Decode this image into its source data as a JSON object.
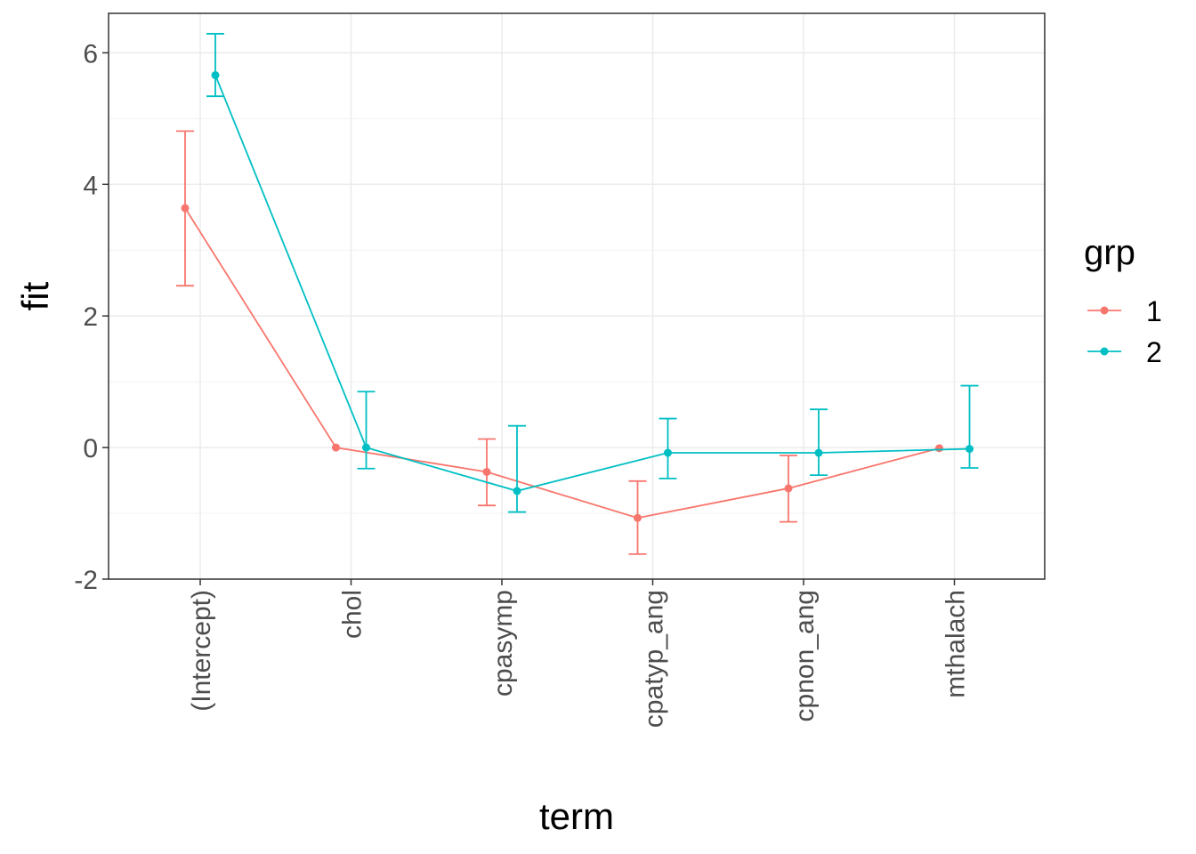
{
  "chart_data": {
    "type": "line",
    "xlabel": "term",
    "ylabel": "fit",
    "categories": [
      "(Intercept)",
      "chol",
      "cpasymp",
      "cpatyp_ang",
      "cpnon_ang",
      "mthalach"
    ],
    "ylim": [
      -2.0,
      6.6
    ],
    "yticks": [
      -2,
      0,
      2,
      4,
      6
    ],
    "grid": true,
    "error_bars": true,
    "legend": {
      "title": "grp",
      "placement": "right"
    },
    "series": [
      {
        "name": "1",
        "color": "#F8766D",
        "values": [
          3.64,
          0.0,
          -0.37,
          -1.07,
          -0.62,
          -0.01
        ],
        "lower": [
          2.46,
          0.0,
          -0.88,
          -1.62,
          -1.13,
          -0.01
        ],
        "upper": [
          4.81,
          0.0,
          0.13,
          -0.51,
          -0.12,
          -0.01
        ]
      },
      {
        "name": "2",
        "color": "#00BFC4",
        "values": [
          5.66,
          0.0,
          -0.66,
          -0.08,
          -0.08,
          -0.02
        ],
        "lower": [
          5.34,
          -0.32,
          -0.98,
          -0.47,
          -0.42,
          -0.31
        ],
        "upper": [
          6.29,
          0.85,
          0.33,
          0.44,
          0.58,
          0.94
        ]
      }
    ]
  }
}
